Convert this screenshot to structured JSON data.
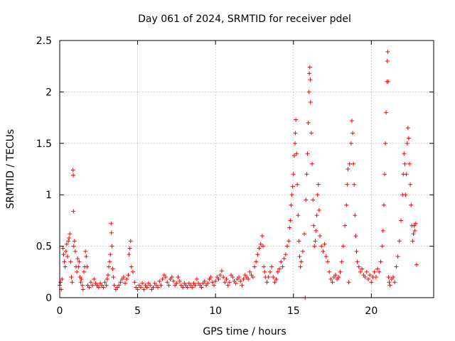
{
  "chart_data": {
    "type": "scatter",
    "title": "Day 061 of 2024, SRMTID for receiver pdel",
    "xlabel": "GPS time / hours",
    "ylabel": "SRMTID / TECUs",
    "xlim": [
      0,
      24
    ],
    "ylim": [
      0,
      2.5
    ],
    "xticks": [
      0,
      5,
      10,
      15,
      20
    ],
    "xtick_labels": [
      "0",
      "5",
      "10",
      "15",
      "20"
    ],
    "yticks": [
      0,
      0.5,
      1,
      1.5,
      2,
      2.5
    ],
    "ytick_labels": [
      "0",
      "0.5",
      "1",
      "1.5",
      "2",
      "2.5"
    ],
    "grid": true,
    "marker": "+",
    "series_color": "#ff0000",
    "series": [
      {
        "name": "SRMTID",
        "points": [
          [
            0.0,
            0.12
          ],
          [
            0.05,
            0.15
          ],
          [
            0.1,
            0.08
          ],
          [
            0.15,
            0.18
          ],
          [
            0.2,
            0.48
          ],
          [
            0.25,
            0.42
          ],
          [
            0.3,
            0.35
          ],
          [
            0.35,
            0.3
          ],
          [
            0.4,
            0.45
          ],
          [
            0.45,
            0.52
          ],
          [
            0.5,
            0.4
          ],
          [
            0.55,
            0.55
          ],
          [
            0.6,
            0.58
          ],
          [
            0.65,
            0.62
          ],
          [
            0.7,
            0.35
          ],
          [
            0.75,
            0.2
          ],
          [
            0.8,
            0.15
          ],
          [
            0.85,
            1.24
          ],
          [
            0.87,
            1.19
          ],
          [
            0.88,
            0.84
          ],
          [
            0.9,
            0.5
          ],
          [
            0.95,
            0.55
          ],
          [
            1.0,
            0.45
          ],
          [
            1.05,
            0.3
          ],
          [
            1.1,
            0.25
          ],
          [
            1.15,
            0.38
          ],
          [
            1.2,
            0.3
          ],
          [
            1.25,
            0.35
          ],
          [
            1.3,
            0.2
          ],
          [
            1.35,
            0.15
          ],
          [
            1.4,
            0.18
          ],
          [
            1.45,
            0.12
          ],
          [
            1.5,
            0.08
          ],
          [
            1.55,
            0.25
          ],
          [
            1.6,
            0.3
          ],
          [
            1.65,
            0.45
          ],
          [
            1.7,
            0.4
          ],
          [
            1.75,
            0.3
          ],
          [
            1.8,
            0.12
          ],
          [
            1.9,
            0.1
          ],
          [
            2.0,
            0.15
          ],
          [
            2.1,
            0.12
          ],
          [
            2.2,
            0.18
          ],
          [
            2.3,
            0.14
          ],
          [
            2.4,
            0.12
          ],
          [
            2.5,
            0.1
          ],
          [
            2.6,
            0.14
          ],
          [
            2.7,
            0.12
          ],
          [
            2.8,
            0.1
          ],
          [
            2.9,
            0.15
          ],
          [
            3.0,
            0.12
          ],
          [
            3.05,
            0.18
          ],
          [
            3.1,
            0.22
          ],
          [
            3.15,
            0.3
          ],
          [
            3.2,
            0.35
          ],
          [
            3.25,
            0.42
          ],
          [
            3.3,
            0.72
          ],
          [
            3.32,
            0.63
          ],
          [
            3.35,
            0.5
          ],
          [
            3.4,
            0.28
          ],
          [
            3.45,
            0.2
          ],
          [
            3.5,
            0.12
          ],
          [
            3.6,
            0.08
          ],
          [
            3.7,
            0.1
          ],
          [
            3.8,
            0.12
          ],
          [
            3.9,
            0.15
          ],
          [
            4.0,
            0.18
          ],
          [
            4.1,
            0.2
          ],
          [
            4.2,
            0.14
          ],
          [
            4.3,
            0.18
          ],
          [
            4.4,
            0.22
          ],
          [
            4.45,
            0.42
          ],
          [
            4.5,
            0.48
          ],
          [
            4.55,
            0.55
          ],
          [
            4.6,
            0.3
          ],
          [
            4.7,
            0.25
          ],
          [
            4.8,
            0.15
          ],
          [
            4.9,
            0.1
          ],
          [
            5.0,
            0.08
          ],
          [
            5.1,
            0.12
          ],
          [
            5.2,
            0.1
          ],
          [
            5.3,
            0.14
          ],
          [
            5.4,
            0.08
          ],
          [
            5.5,
            0.12
          ],
          [
            5.6,
            0.1
          ],
          [
            5.7,
            0.14
          ],
          [
            5.8,
            0.12
          ],
          [
            5.9,
            0.08
          ],
          [
            6.0,
            0.1
          ],
          [
            6.1,
            0.14
          ],
          [
            6.2,
            0.12
          ],
          [
            6.3,
            0.1
          ],
          [
            6.4,
            0.16
          ],
          [
            6.5,
            0.12
          ],
          [
            6.6,
            0.18
          ],
          [
            6.7,
            0.22
          ],
          [
            6.8,
            0.2
          ],
          [
            6.9,
            0.15
          ],
          [
            7.0,
            0.12
          ],
          [
            7.1,
            0.18
          ],
          [
            7.2,
            0.2
          ],
          [
            7.3,
            0.16
          ],
          [
            7.4,
            0.12
          ],
          [
            7.5,
            0.14
          ],
          [
            7.6,
            0.2
          ],
          [
            7.7,
            0.16
          ],
          [
            7.8,
            0.12
          ],
          [
            7.9,
            0.1
          ],
          [
            8.0,
            0.14
          ],
          [
            8.1,
            0.12
          ],
          [
            8.2,
            0.1
          ],
          [
            8.3,
            0.14
          ],
          [
            8.4,
            0.12
          ],
          [
            8.5,
            0.1
          ],
          [
            8.6,
            0.14
          ],
          [
            8.7,
            0.12
          ],
          [
            8.8,
            0.18
          ],
          [
            8.9,
            0.14
          ],
          [
            9.0,
            0.12
          ],
          [
            9.1,
            0.1
          ],
          [
            9.2,
            0.14
          ],
          [
            9.3,
            0.16
          ],
          [
            9.4,
            0.12
          ],
          [
            9.5,
            0.14
          ],
          [
            9.6,
            0.18
          ],
          [
            9.7,
            0.2
          ],
          [
            9.8,
            0.15
          ],
          [
            9.9,
            0.12
          ],
          [
            10.0,
            0.16
          ],
          [
            10.1,
            0.2
          ],
          [
            10.2,
            0.18
          ],
          [
            10.3,
            0.22
          ],
          [
            10.4,
            0.26
          ],
          [
            10.5,
            0.2
          ],
          [
            10.6,
            0.15
          ],
          [
            10.7,
            0.18
          ],
          [
            10.8,
            0.12
          ],
          [
            10.9,
            0.15
          ],
          [
            11.0,
            0.22
          ],
          [
            11.1,
            0.2
          ],
          [
            11.2,
            0.16
          ],
          [
            11.3,
            0.14
          ],
          [
            11.4,
            0.18
          ],
          [
            11.5,
            0.2
          ],
          [
            11.6,
            0.16
          ],
          [
            11.7,
            0.12
          ],
          [
            11.8,
            0.18
          ],
          [
            11.9,
            0.22
          ],
          [
            12.0,
            0.2
          ],
          [
            12.1,
            0.18
          ],
          [
            12.2,
            0.25
          ],
          [
            12.3,
            0.22
          ],
          [
            12.4,
            0.2
          ],
          [
            12.5,
            0.3
          ],
          [
            12.6,
            0.35
          ],
          [
            12.7,
            0.42
          ],
          [
            12.8,
            0.48
          ],
          [
            12.9,
            0.52
          ],
          [
            13.0,
            0.6
          ],
          [
            13.05,
            0.5
          ],
          [
            13.1,
            0.3
          ],
          [
            13.15,
            0.25
          ],
          [
            13.2,
            0.2
          ],
          [
            13.3,
            0.15
          ],
          [
            13.4,
            0.2
          ],
          [
            13.5,
            0.25
          ],
          [
            13.6,
            0.3
          ],
          [
            13.7,
            0.2
          ],
          [
            13.8,
            0.15
          ],
          [
            13.9,
            0.18
          ],
          [
            14.0,
            0.25
          ],
          [
            14.1,
            0.28
          ],
          [
            14.2,
            0.35
          ],
          [
            14.3,
            0.3
          ],
          [
            14.4,
            0.38
          ],
          [
            14.5,
            0.42
          ],
          [
            14.6,
            0.5
          ],
          [
            14.7,
            0.55
          ],
          [
            14.75,
            0.68
          ],
          [
            14.8,
            0.75
          ],
          [
            14.85,
            0.9
          ],
          [
            14.9,
            1.0
          ],
          [
            14.95,
            1.08
          ],
          [
            15.0,
            1.2
          ],
          [
            15.05,
            1.38
          ],
          [
            15.1,
            1.5
          ],
          [
            15.12,
            1.6
          ],
          [
            15.15,
            1.73
          ],
          [
            15.2,
            1.4
          ],
          [
            15.25,
            1.1
          ],
          [
            15.3,
            0.8
          ],
          [
            15.35,
            0.55
          ],
          [
            15.4,
            0.4
          ],
          [
            15.45,
            0.3
          ],
          [
            15.5,
            0.35
          ],
          [
            15.6,
            0.45
          ],
          [
            15.7,
            0.62
          ],
          [
            15.75,
            0.0
          ],
          [
            15.8,
            0.95
          ],
          [
            15.85,
            1.2
          ],
          [
            15.9,
            1.4
          ],
          [
            15.95,
            1.7
          ],
          [
            16.0,
            2.0
          ],
          [
            16.02,
            2.18
          ],
          [
            16.05,
            2.24
          ],
          [
            16.08,
            2.12
          ],
          [
            16.1,
            1.9
          ],
          [
            16.15,
            1.6
          ],
          [
            16.2,
            1.3
          ],
          [
            16.25,
            0.95
          ],
          [
            16.3,
            0.7
          ],
          [
            16.35,
            0.5
          ],
          [
            16.4,
            0.55
          ],
          [
            16.45,
            0.65
          ],
          [
            16.5,
            0.8
          ],
          [
            16.55,
            1.0
          ],
          [
            16.6,
            1.1
          ],
          [
            16.65,
            0.85
          ],
          [
            16.7,
            0.6
          ],
          [
            16.8,
            0.5
          ],
          [
            16.9,
            0.45
          ],
          [
            17.0,
            0.52
          ],
          [
            17.1,
            0.4
          ],
          [
            17.2,
            0.35
          ],
          [
            17.3,
            0.25
          ],
          [
            17.4,
            0.18
          ],
          [
            17.5,
            0.15
          ],
          [
            17.6,
            0.2
          ],
          [
            17.7,
            0.22
          ],
          [
            17.8,
            0.18
          ],
          [
            17.9,
            0.2
          ],
          [
            18.0,
            0.25
          ],
          [
            18.1,
            0.35
          ],
          [
            18.2,
            0.5
          ],
          [
            18.3,
            0.7
          ],
          [
            18.4,
            0.9
          ],
          [
            18.45,
            1.1
          ],
          [
            18.5,
            1.25
          ],
          [
            18.55,
            0.15
          ],
          [
            18.6,
            1.3
          ],
          [
            18.7,
            1.5
          ],
          [
            18.75,
            1.72
          ],
          [
            18.8,
            1.6
          ],
          [
            18.85,
            1.3
          ],
          [
            18.9,
            1.1
          ],
          [
            18.95,
            0.8
          ],
          [
            19.0,
            0.6
          ],
          [
            19.05,
            0.45
          ],
          [
            19.1,
            0.35
          ],
          [
            19.2,
            0.3
          ],
          [
            19.3,
            0.25
          ],
          [
            19.4,
            0.28
          ],
          [
            19.5,
            0.22
          ],
          [
            19.6,
            0.2
          ],
          [
            19.7,
            0.25
          ],
          [
            19.8,
            0.18
          ],
          [
            19.9,
            0.22
          ],
          [
            20.0,
            0.15
          ],
          [
            20.1,
            0.2
          ],
          [
            20.2,
            0.25
          ],
          [
            20.3,
            0.2
          ],
          [
            20.4,
            0.28
          ],
          [
            20.5,
            0.25
          ],
          [
            20.6,
            0.35
          ],
          [
            20.7,
            0.5
          ],
          [
            20.75,
            0.65
          ],
          [
            20.8,
            0.9
          ],
          [
            20.85,
            1.2
          ],
          [
            20.9,
            1.5
          ],
          [
            20.95,
            1.8
          ],
          [
            21.0,
            2.1
          ],
          [
            21.02,
            2.3
          ],
          [
            21.05,
            2.39
          ],
          [
            21.08,
            2.1
          ],
          [
            21.1,
            0.2
          ],
          [
            21.15,
            0.15
          ],
          [
            21.2,
            0.12
          ],
          [
            21.3,
            0.18
          ],
          [
            21.4,
            0.2
          ],
          [
            21.5,
            0.15
          ],
          [
            21.6,
            0.3
          ],
          [
            21.7,
            0.4
          ],
          [
            21.8,
            0.55
          ],
          [
            21.9,
            0.75
          ],
          [
            22.0,
            1.0
          ],
          [
            22.05,
            1.2
          ],
          [
            22.1,
            1.4
          ],
          [
            22.15,
            1.3
          ],
          [
            22.2,
            1.0
          ],
          [
            22.25,
            1.2
          ],
          [
            22.3,
            1.5
          ],
          [
            22.35,
            1.65
          ],
          [
            22.4,
            1.55
          ],
          [
            22.45,
            1.3
          ],
          [
            22.5,
            1.1
          ],
          [
            22.55,
            0.9
          ],
          [
            22.6,
            0.7
          ],
          [
            22.65,
            0.55
          ],
          [
            22.7,
            0.62
          ],
          [
            22.75,
            0.7
          ],
          [
            22.8,
            0.65
          ],
          [
            22.85,
            0.72
          ],
          [
            22.9,
            0.32
          ]
        ]
      }
    ]
  }
}
